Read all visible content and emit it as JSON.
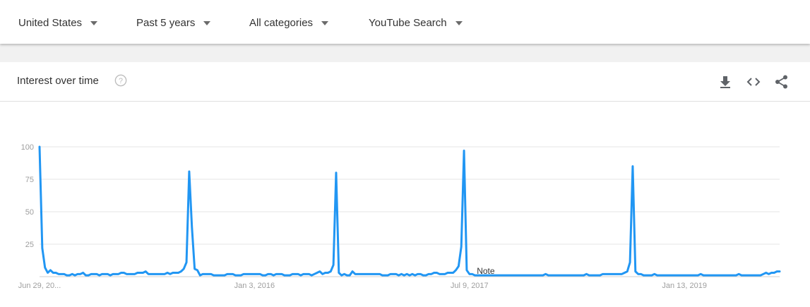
{
  "filters": [
    {
      "label": "United States"
    },
    {
      "label": "Past 5 years"
    },
    {
      "label": "All categories"
    },
    {
      "label": "YouTube Search"
    }
  ],
  "card": {
    "title": "Interest over time",
    "icons": [
      "help-icon",
      "download-icon",
      "embed-icon",
      "share-icon"
    ]
  },
  "colors": {
    "line": "#2196f3",
    "grid": "#e6e6e6",
    "axis_text": "#9e9e9e"
  },
  "chart_data": {
    "type": "line",
    "title": "",
    "xlabel": "",
    "ylabel": "",
    "ylim": [
      0,
      100
    ],
    "yticks": [
      25,
      50,
      75,
      100
    ],
    "xtick_labels": [
      "Jun 29, 20...",
      "Jan 3, 2016",
      "Jul 9, 2017",
      "Jan 13, 2019"
    ],
    "xtick_weeks": [
      0,
      79,
      158,
      237
    ],
    "grid": true,
    "annotation": {
      "text": "Note",
      "week": 164
    },
    "series": [
      {
        "name": "",
        "weekly_values": [
          100,
          22,
          7,
          3,
          5,
          3,
          3,
          2,
          2,
          2,
          1,
          1,
          2,
          1,
          2,
          2,
          3,
          1,
          1,
          2,
          2,
          2,
          1,
          2,
          2,
          2,
          1,
          2,
          2,
          2,
          3,
          3,
          2,
          2,
          2,
          2,
          3,
          3,
          3,
          4,
          2,
          2,
          2,
          2,
          2,
          2,
          2,
          3,
          2,
          3,
          3,
          3,
          4,
          6,
          11,
          81,
          38,
          6,
          5,
          1,
          2,
          2,
          2,
          2,
          1,
          1,
          1,
          1,
          1,
          2,
          2,
          2,
          1,
          1,
          1,
          2,
          2,
          2,
          2,
          2,
          2,
          2,
          1,
          1,
          2,
          2,
          1,
          2,
          2,
          2,
          1,
          1,
          1,
          2,
          2,
          2,
          1,
          2,
          2,
          2,
          1,
          2,
          3,
          4,
          2,
          3,
          3,
          4,
          9,
          80,
          3,
          1,
          2,
          1,
          1,
          4,
          2,
          2,
          2,
          2,
          2,
          2,
          2,
          2,
          2,
          2,
          1,
          1,
          1,
          2,
          2,
          2,
          1,
          2,
          1,
          2,
          1,
          2,
          1,
          2,
          2,
          1,
          1,
          2,
          2,
          3,
          3,
          2,
          2,
          2,
          3,
          3,
          3,
          5,
          8,
          23,
          97,
          5,
          2,
          2,
          1,
          1,
          1,
          1,
          1,
          1,
          1,
          1,
          1,
          1,
          1,
          1,
          1,
          1,
          1,
          1,
          1,
          1,
          1,
          1,
          1,
          1,
          1,
          1,
          1,
          1,
          2,
          1,
          1,
          1,
          1,
          1,
          1,
          1,
          1,
          1,
          1,
          1,
          1,
          1,
          1,
          2,
          1,
          1,
          1,
          1,
          1,
          2,
          2,
          2,
          2,
          2,
          2,
          2,
          2,
          3,
          4,
          11,
          85,
          4,
          2,
          2,
          1,
          1,
          1,
          1,
          2,
          1,
          1,
          1,
          1,
          1,
          1,
          1,
          1,
          1,
          1,
          1,
          1,
          1,
          1,
          1,
          1,
          2,
          1,
          1,
          1,
          1,
          1,
          1,
          1,
          1,
          1,
          1,
          1,
          1,
          1,
          2,
          1,
          1,
          1,
          1,
          1,
          1,
          1,
          1,
          2,
          3,
          2,
          3,
          3,
          4,
          4
        ]
      }
    ]
  }
}
